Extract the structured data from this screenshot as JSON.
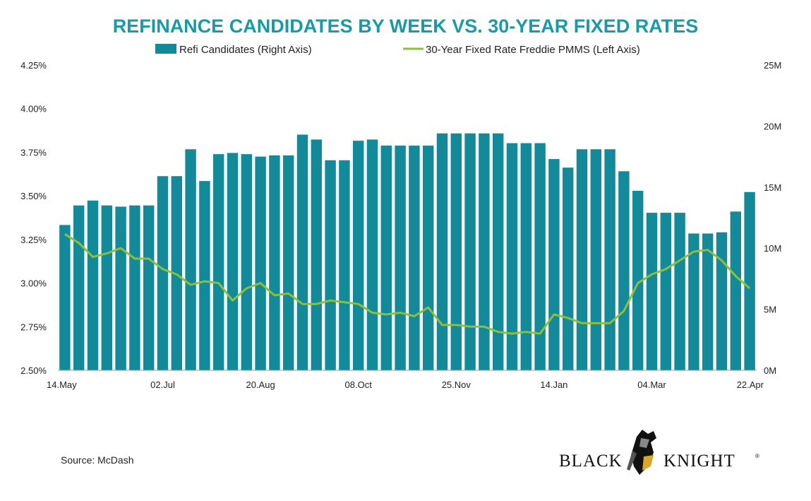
{
  "colors": {
    "bar": "#138a99",
    "line": "#8cbe3f",
    "title": "#1a9aa6"
  },
  "chart_data": {
    "type": "bar",
    "title": "REFINANCE CANDIDATES BY WEEK VS. 30-YEAR FIXED RATES",
    "legend": [
      "Refi Candidates (Right Axis)",
      "30-Year Fixed Rate Freddie PMMS (Left Axis)"
    ],
    "x_tick_labels": [
      "14.May",
      "02.Jul",
      "20.Aug",
      "08.Oct",
      "25.Nov",
      "14.Jan",
      "04.Mar",
      "22.Apr"
    ],
    "x_tick_indices": [
      0,
      7,
      14,
      21,
      28,
      35,
      42,
      49
    ],
    "left_axis": {
      "ticks": [
        "2.50%",
        "2.75%",
        "3.00%",
        "3.25%",
        "3.50%",
        "3.75%",
        "4.00%",
        "4.25%"
      ],
      "min": 2.5,
      "max": 4.25
    },
    "right_axis": {
      "ticks": [
        "0M",
        "5M",
        "10M",
        "15M",
        "20M",
        "25M"
      ],
      "min": 0,
      "max": 25
    },
    "grid": false,
    "series": [
      {
        "name": "Refi Candidates (Right Axis)",
        "type": "bar",
        "axis": "right",
        "values": [
          11.9,
          13.5,
          13.9,
          13.5,
          13.4,
          13.5,
          13.5,
          15.9,
          15.9,
          18.1,
          15.5,
          17.7,
          17.8,
          17.7,
          17.5,
          17.6,
          17.6,
          19.3,
          18.9,
          17.2,
          17.2,
          18.8,
          18.9,
          18.4,
          18.4,
          18.4,
          18.4,
          19.4,
          19.4,
          19.4,
          19.4,
          19.4,
          18.6,
          18.6,
          18.6,
          17.3,
          16.6,
          18.1,
          18.1,
          18.1,
          16.3,
          14.7,
          12.9,
          12.9,
          12.9,
          11.2,
          11.2,
          11.3,
          13,
          14.6
        ]
      },
      {
        "name": "30-Year Fixed Rate Freddie PMMS (Left Axis)",
        "type": "line",
        "axis": "left",
        "values": [
          3.28,
          3.23,
          3.15,
          3.17,
          3.2,
          3.14,
          3.14,
          3.08,
          3.05,
          2.99,
          3.01,
          3.0,
          2.9,
          2.97,
          3.0,
          2.93,
          2.94,
          2.88,
          2.88,
          2.9,
          2.89,
          2.88,
          2.83,
          2.82,
          2.83,
          2.81,
          2.86,
          2.76,
          2.76,
          2.75,
          2.75,
          2.72,
          2.71,
          2.72,
          2.71,
          2.82,
          2.8,
          2.77,
          2.77,
          2.77,
          2.84,
          3.0,
          3.05,
          3.08,
          3.13,
          3.18,
          3.19,
          3.13,
          3.04,
          2.97
        ]
      }
    ]
  },
  "source": "Source: McDash",
  "logo": {
    "left_word": "BLACK",
    "right_word": "KNIGHT",
    "mark": "®"
  }
}
